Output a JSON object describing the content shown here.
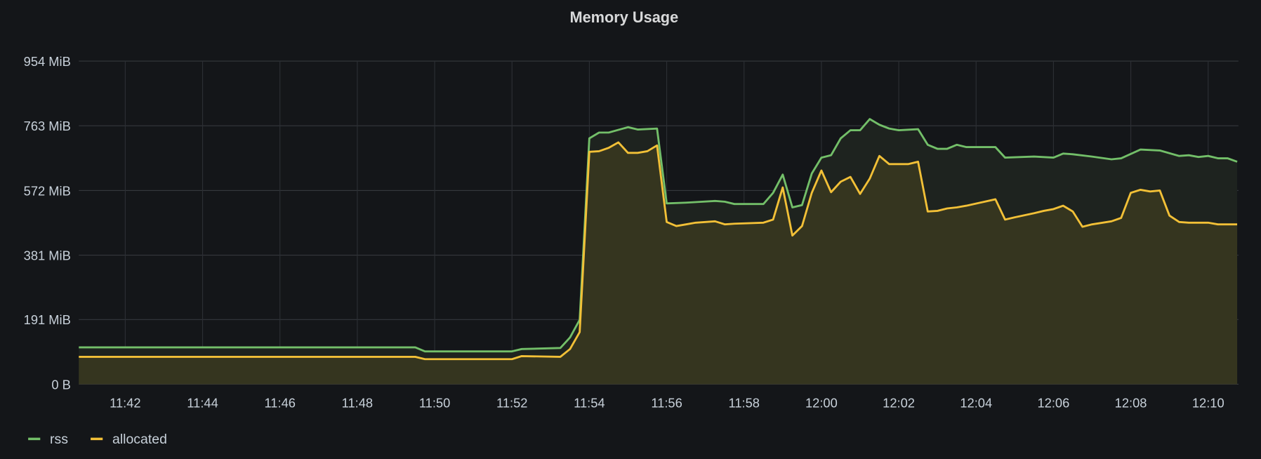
{
  "chart_data": {
    "type": "area",
    "title": "Memory Usage",
    "xlabel": "",
    "ylabel": "",
    "y_unit": "MiB",
    "ylim": [
      0,
      954
    ],
    "xlim": [
      "11:40:48",
      "12:10:47"
    ],
    "y_ticks": [
      {
        "value": 0,
        "label": "0 B"
      },
      {
        "value": 191,
        "label": "191 MiB"
      },
      {
        "value": 381,
        "label": "381 MiB"
      },
      {
        "value": 572,
        "label": "572 MiB"
      },
      {
        "value": 763,
        "label": "763 MiB"
      },
      {
        "value": 954,
        "label": "954 MiB"
      }
    ],
    "x_ticks": [
      "11:42",
      "11:44",
      "11:46",
      "11:48",
      "11:50",
      "11:52",
      "11:54",
      "11:56",
      "11:58",
      "12:00",
      "12:02",
      "12:04",
      "12:06",
      "12:08",
      "12:10"
    ],
    "grid": true,
    "legend_position": "bottom-left",
    "series": [
      {
        "name": "rss",
        "color": "#73bf69",
        "fill": "#1e231f",
        "points": [
          [
            "11:40:48",
            109
          ],
          [
            "11:49:30",
            109
          ],
          [
            "11:49:45",
            97
          ],
          [
            "11:52:00",
            97
          ],
          [
            "11:52:15",
            104
          ],
          [
            "11:53:15",
            107
          ],
          [
            "11:53:30",
            138
          ],
          [
            "11:53:45",
            190
          ],
          [
            "11:54:00",
            726
          ],
          [
            "11:54:15",
            743
          ],
          [
            "11:54:30",
            743
          ],
          [
            "11:55:00",
            759
          ],
          [
            "11:55:15",
            752
          ],
          [
            "11:55:45",
            755
          ],
          [
            "11:56:00",
            534
          ],
          [
            "11:56:30",
            536
          ],
          [
            "11:57:15",
            541
          ],
          [
            "11:57:30",
            539
          ],
          [
            "11:57:45",
            532
          ],
          [
            "11:58:30",
            532
          ],
          [
            "11:58:45",
            565
          ],
          [
            "11:59:00",
            619
          ],
          [
            "11:59:15",
            522
          ],
          [
            "11:59:30",
            529
          ],
          [
            "11:59:45",
            622
          ],
          [
            "12:00:00",
            669
          ],
          [
            "12:00:15",
            676
          ],
          [
            "12:00:30",
            726
          ],
          [
            "12:00:45",
            750
          ],
          [
            "12:01:00",
            750
          ],
          [
            "12:01:15",
            783
          ],
          [
            "12:01:30",
            766
          ],
          [
            "12:01:45",
            755
          ],
          [
            "12:02:00",
            750
          ],
          [
            "12:02:30",
            753
          ],
          [
            "12:02:45",
            707
          ],
          [
            "12:03:00",
            695
          ],
          [
            "12:03:15",
            695
          ],
          [
            "12:03:30",
            707
          ],
          [
            "12:03:45",
            700
          ],
          [
            "12:04:30",
            700
          ],
          [
            "12:04:45",
            669
          ],
          [
            "12:05:30",
            672
          ],
          [
            "12:06:00",
            669
          ],
          [
            "12:06:15",
            681
          ],
          [
            "12:06:30",
            679
          ],
          [
            "12:07:00",
            672
          ],
          [
            "12:07:30",
            664
          ],
          [
            "12:07:45",
            667
          ],
          [
            "12:08:15",
            693
          ],
          [
            "12:08:45",
            690
          ],
          [
            "12:09:15",
            674
          ],
          [
            "12:09:30",
            676
          ],
          [
            "12:09:45",
            671
          ],
          [
            "12:10:00",
            674
          ],
          [
            "12:10:15",
            667
          ],
          [
            "12:10:30",
            667
          ],
          [
            "12:10:45",
            657
          ]
        ]
      },
      {
        "name": "allocated",
        "color": "#f2c037",
        "fill": "#35351f",
        "points": [
          [
            "11:40:48",
            81
          ],
          [
            "11:49:30",
            81
          ],
          [
            "11:49:45",
            74
          ],
          [
            "11:52:00",
            74
          ],
          [
            "11:52:15",
            83
          ],
          [
            "11:53:15",
            81
          ],
          [
            "11:53:30",
            104
          ],
          [
            "11:53:45",
            154
          ],
          [
            "11:54:00",
            686
          ],
          [
            "11:54:15",
            688
          ],
          [
            "11:54:30",
            698
          ],
          [
            "11:54:45",
            714
          ],
          [
            "11:55:00",
            683
          ],
          [
            "11:55:15",
            683
          ],
          [
            "11:55:30",
            688
          ],
          [
            "11:55:45",
            705
          ],
          [
            "11:56:00",
            479
          ],
          [
            "11:56:15",
            467
          ],
          [
            "11:56:30",
            472
          ],
          [
            "11:56:45",
            477
          ],
          [
            "11:57:15",
            481
          ],
          [
            "11:57:30",
            472
          ],
          [
            "11:57:45",
            474
          ],
          [
            "11:58:30",
            477
          ],
          [
            "11:58:45",
            486
          ],
          [
            "11:59:00",
            581
          ],
          [
            "11:59:15",
            439
          ],
          [
            "11:59:30",
            467
          ],
          [
            "11:59:45",
            565
          ],
          [
            "12:00:00",
            631
          ],
          [
            "12:00:15",
            567
          ],
          [
            "12:00:30",
            598
          ],
          [
            "12:00:45",
            612
          ],
          [
            "12:01:00",
            562
          ],
          [
            "12:01:15",
            607
          ],
          [
            "12:01:30",
            674
          ],
          [
            "12:01:45",
            650
          ],
          [
            "12:02:15",
            650
          ],
          [
            "12:02:30",
            657
          ],
          [
            "12:02:45",
            510
          ],
          [
            "12:03:00",
            512
          ],
          [
            "12:03:15",
            519
          ],
          [
            "12:03:30",
            522
          ],
          [
            "12:03:45",
            527
          ],
          [
            "12:04:30",
            546
          ],
          [
            "12:04:45",
            486
          ],
          [
            "12:05:00",
            493
          ],
          [
            "12:05:30",
            505
          ],
          [
            "12:05:45",
            512
          ],
          [
            "12:06:00",
            517
          ],
          [
            "12:06:15",
            527
          ],
          [
            "12:06:30",
            510
          ],
          [
            "12:06:45",
            465
          ],
          [
            "12:07:00",
            472
          ],
          [
            "12:07:30",
            481
          ],
          [
            "12:07:45",
            491
          ],
          [
            "12:08:00",
            565
          ],
          [
            "12:08:15",
            574
          ],
          [
            "12:08:30",
            569
          ],
          [
            "12:08:45",
            572
          ],
          [
            "12:09:00",
            498
          ],
          [
            "12:09:15",
            479
          ],
          [
            "12:09:30",
            477
          ],
          [
            "12:10:00",
            477
          ],
          [
            "12:10:15",
            472
          ],
          [
            "12:10:45",
            472
          ]
        ]
      }
    ]
  }
}
